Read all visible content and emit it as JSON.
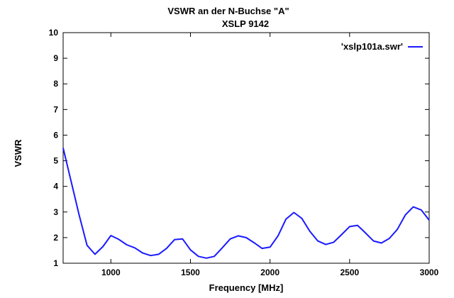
{
  "chart_data": {
    "type": "line",
    "title": "VSWR an der N-Buchse \"A\"",
    "subtitle": "XSLP 9142",
    "xlabel": "Frequency [MHz]",
    "ylabel": "VSWR",
    "xlim": [
      700,
      3000
    ],
    "ylim": [
      1,
      10
    ],
    "xticks": [
      1000,
      1500,
      2000,
      2500,
      3000
    ],
    "yticks": [
      1,
      2,
      3,
      4,
      5,
      6,
      7,
      8,
      9,
      10
    ],
    "grid": false,
    "legend_position": "top-right",
    "series": [
      {
        "name": "'xslp101a.swr'",
        "color": "#1a1aff",
        "x": [
          700,
          750,
          800,
          850,
          900,
          950,
          1000,
          1050,
          1100,
          1150,
          1200,
          1250,
          1300,
          1350,
          1400,
          1450,
          1500,
          1550,
          1600,
          1650,
          1700,
          1750,
          1800,
          1850,
          1900,
          1950,
          2000,
          2050,
          2100,
          2150,
          2200,
          2250,
          2300,
          2350,
          2400,
          2450,
          2500,
          2550,
          2600,
          2650,
          2700,
          2750,
          2800,
          2850,
          2900,
          2950,
          3000
        ],
        "y": [
          5.5,
          4.2,
          2.9,
          1.7,
          1.35,
          1.65,
          2.08,
          1.93,
          1.72,
          1.6,
          1.4,
          1.3,
          1.35,
          1.58,
          1.92,
          1.95,
          1.52,
          1.27,
          1.2,
          1.27,
          1.6,
          1.95,
          2.07,
          2.0,
          1.8,
          1.58,
          1.63,
          2.07,
          2.72,
          2.98,
          2.75,
          2.25,
          1.87,
          1.73,
          1.82,
          2.12,
          2.43,
          2.48,
          2.18,
          1.87,
          1.79,
          1.97,
          2.32,
          2.88,
          3.2,
          3.08,
          2.68
        ]
      }
    ]
  }
}
